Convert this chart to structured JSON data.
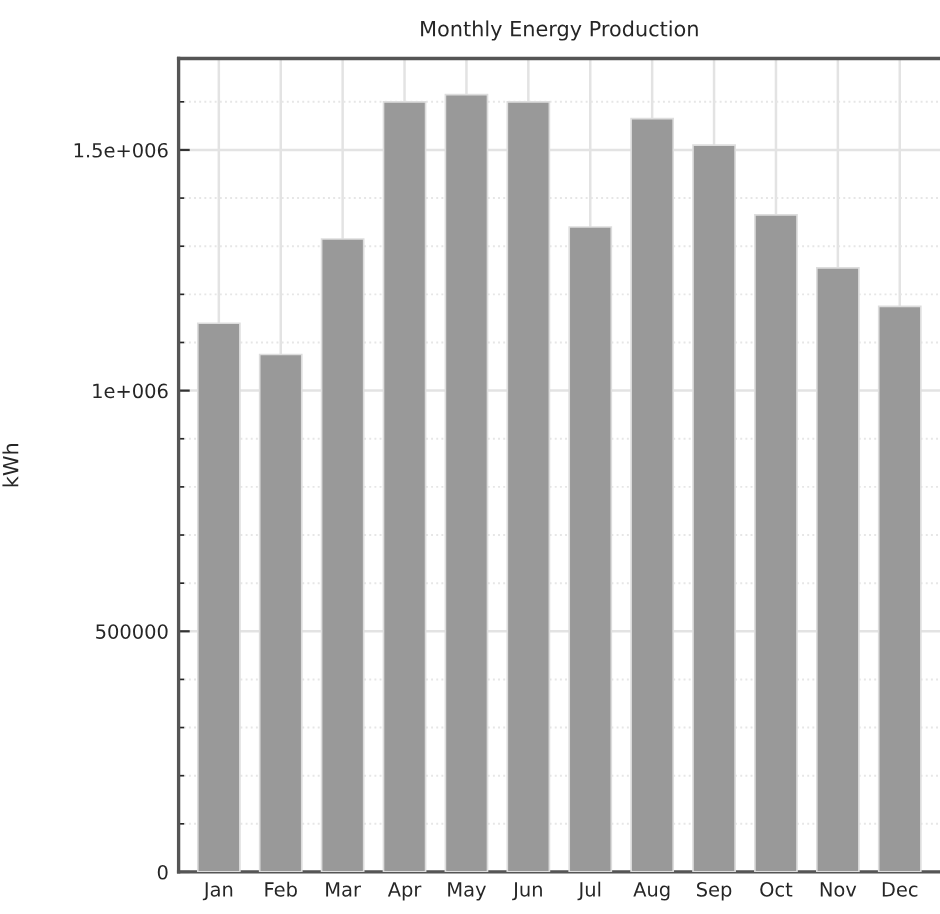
{
  "chart_data": {
    "type": "bar",
    "title": "Monthly Energy Production",
    "ylabel": "kWh",
    "categories": [
      "Jan",
      "Feb",
      "Mar",
      "Apr",
      "May",
      "Jun",
      "Jul",
      "Aug",
      "Sep",
      "Oct",
      "Nov",
      "Dec"
    ],
    "values": [
      1140000,
      1075000,
      1315000,
      1600000,
      1615000,
      1600000,
      1340000,
      1565000,
      1510000,
      1365000,
      1255000,
      1175000
    ],
    "color": "#999999",
    "ylim": [
      0,
      1690000
    ],
    "yticks": [
      0,
      500000,
      {
        "value": 1000000,
        "label": "1e+006"
      },
      {
        "value": 1500000,
        "label": "1.5e+006"
      }
    ],
    "grid": true
  }
}
